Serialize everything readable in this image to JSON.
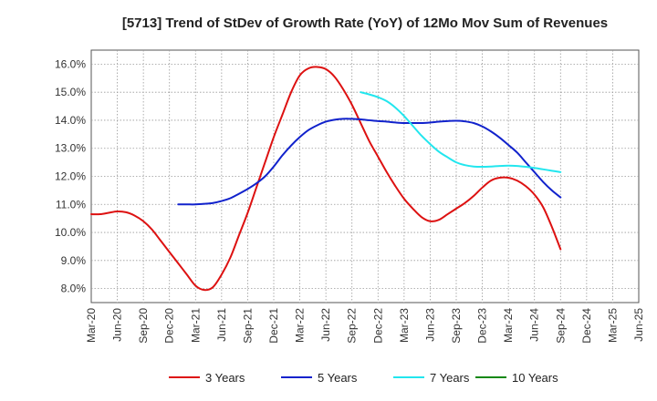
{
  "chart_data": {
    "type": "line",
    "title": "[5713]  Trend of StDev of Growth Rate (YoY) of 12Mo Mov Sum of Revenues",
    "xlabel": "",
    "ylabel": "",
    "ylim": [
      7.5,
      16.5
    ],
    "y_ticks": [
      8.0,
      9.0,
      10.0,
      11.0,
      12.0,
      13.0,
      14.0,
      15.0,
      16.0
    ],
    "y_tick_labels": [
      "8.0%",
      "9.0%",
      "10.0%",
      "11.0%",
      "12.0%",
      "13.0%",
      "14.0%",
      "15.0%",
      "16.0%"
    ],
    "x_tick_labels": [
      "Mar-20",
      "Jun-20",
      "Sep-20",
      "Dec-20",
      "Mar-21",
      "Jun-21",
      "Sep-21",
      "Dec-21",
      "Mar-22",
      "Jun-22",
      "Sep-22",
      "Dec-22",
      "Mar-23",
      "Jun-23",
      "Sep-23",
      "Dec-23",
      "Mar-24",
      "Jun-24",
      "Sep-24",
      "Dec-24",
      "Mar-25",
      "Jun-25"
    ],
    "grid": true,
    "legend_position": "bottom",
    "series": [
      {
        "name": "3 Years",
        "color": "#dd1111",
        "points": [
          [
            0,
            10.65
          ],
          [
            1,
            10.65
          ],
          [
            2,
            10.7
          ],
          [
            3,
            10.75
          ],
          [
            4,
            10.72
          ],
          [
            5,
            10.6
          ],
          [
            6,
            10.4
          ],
          [
            7,
            10.1
          ],
          [
            8,
            9.7
          ],
          [
            9,
            9.3
          ],
          [
            10,
            8.9
          ],
          [
            11,
            8.5
          ],
          [
            12,
            8.1
          ],
          [
            13,
            7.95
          ],
          [
            14,
            8.05
          ],
          [
            15,
            8.5
          ],
          [
            16,
            9.1
          ],
          [
            17,
            9.9
          ],
          [
            18,
            10.7
          ],
          [
            19,
            11.6
          ],
          [
            20,
            12.5
          ],
          [
            21,
            13.4
          ],
          [
            22,
            14.2
          ],
          [
            23,
            15.0
          ],
          [
            24,
            15.6
          ],
          [
            25,
            15.85
          ],
          [
            26,
            15.9
          ],
          [
            27,
            15.82
          ],
          [
            28,
            15.55
          ],
          [
            29,
            15.1
          ],
          [
            30,
            14.55
          ],
          [
            31,
            13.9
          ],
          [
            32,
            13.25
          ],
          [
            33,
            12.7
          ],
          [
            34,
            12.15
          ],
          [
            35,
            11.65
          ],
          [
            36,
            11.2
          ],
          [
            37,
            10.85
          ],
          [
            38,
            10.55
          ],
          [
            39,
            10.4
          ],
          [
            40,
            10.45
          ],
          [
            41,
            10.65
          ],
          [
            42,
            10.85
          ],
          [
            43,
            11.05
          ],
          [
            44,
            11.3
          ],
          [
            45,
            11.6
          ],
          [
            46,
            11.85
          ],
          [
            47,
            11.95
          ],
          [
            48,
            11.95
          ],
          [
            49,
            11.85
          ],
          [
            50,
            11.65
          ],
          [
            51,
            11.35
          ],
          [
            52,
            10.9
          ],
          [
            53,
            10.2
          ],
          [
            54,
            9.4
          ]
        ]
      },
      {
        "name": "5 Years",
        "color": "#1122cc",
        "points": [
          [
            10,
            11.0
          ],
          [
            11,
            11.0
          ],
          [
            12,
            11.0
          ],
          [
            13,
            11.02
          ],
          [
            14,
            11.05
          ],
          [
            15,
            11.12
          ],
          [
            16,
            11.22
          ],
          [
            17,
            11.38
          ],
          [
            18,
            11.55
          ],
          [
            19,
            11.75
          ],
          [
            20,
            12.0
          ],
          [
            21,
            12.35
          ],
          [
            22,
            12.75
          ],
          [
            23,
            13.1
          ],
          [
            24,
            13.4
          ],
          [
            25,
            13.65
          ],
          [
            26,
            13.82
          ],
          [
            27,
            13.95
          ],
          [
            28,
            14.02
          ],
          [
            29,
            14.05
          ],
          [
            30,
            14.05
          ],
          [
            31,
            14.03
          ],
          [
            32,
            14.0
          ],
          [
            33,
            13.97
          ],
          [
            34,
            13.95
          ],
          [
            35,
            13.92
          ],
          [
            36,
            13.9
          ],
          [
            37,
            13.9
          ],
          [
            38,
            13.9
          ],
          [
            39,
            13.92
          ],
          [
            40,
            13.95
          ],
          [
            41,
            13.97
          ],
          [
            42,
            13.98
          ],
          [
            43,
            13.96
          ],
          [
            44,
            13.9
          ],
          [
            45,
            13.78
          ],
          [
            46,
            13.6
          ],
          [
            47,
            13.38
          ],
          [
            48,
            13.12
          ],
          [
            49,
            12.85
          ],
          [
            50,
            12.5
          ],
          [
            51,
            12.15
          ],
          [
            52,
            11.8
          ],
          [
            53,
            11.5
          ],
          [
            54,
            11.25
          ]
        ]
      },
      {
        "name": "7 Years",
        "color": "#22e6ee",
        "points": [
          [
            31,
            15.0
          ],
          [
            32,
            14.92
          ],
          [
            33,
            14.82
          ],
          [
            34,
            14.68
          ],
          [
            35,
            14.45
          ],
          [
            36,
            14.15
          ],
          [
            37,
            13.8
          ],
          [
            38,
            13.45
          ],
          [
            39,
            13.15
          ],
          [
            40,
            12.88
          ],
          [
            41,
            12.68
          ],
          [
            42,
            12.5
          ],
          [
            43,
            12.4
          ],
          [
            44,
            12.35
          ],
          [
            45,
            12.34
          ],
          [
            46,
            12.35
          ],
          [
            47,
            12.37
          ],
          [
            48,
            12.38
          ],
          [
            49,
            12.37
          ],
          [
            50,
            12.34
          ],
          [
            51,
            12.3
          ],
          [
            52,
            12.25
          ],
          [
            53,
            12.2
          ],
          [
            54,
            12.15
          ]
        ]
      },
      {
        "name": "10 Years",
        "color": "#118811",
        "points": []
      }
    ]
  }
}
